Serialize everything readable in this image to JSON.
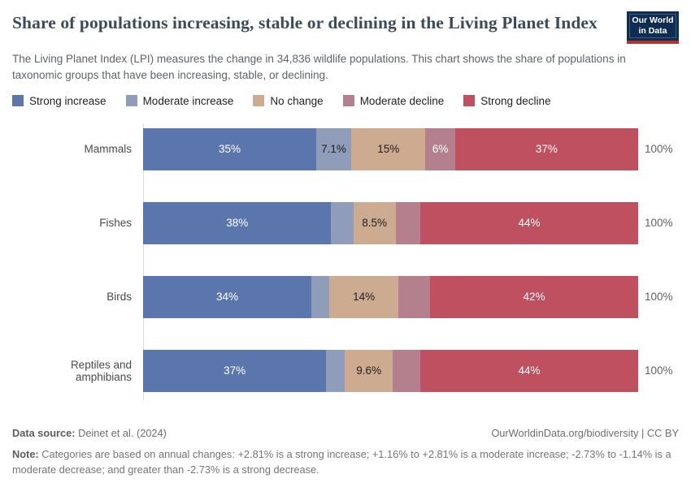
{
  "header": {
    "title": "Share of populations increasing, stable or declining in the Living Planet Index",
    "subtitle": "The Living Planet Index (LPI) measures the change in 34,836 wildlife populations. This chart shows the share of populations in taxonomic groups that have been increasing, stable, or declining.",
    "logo": {
      "line1": "Our World",
      "line2": "in Data",
      "bg_color": "#0f2d52",
      "stripe_color": "#b3342e"
    }
  },
  "legend": [
    {
      "label": "Strong increase",
      "color": "#5a76ac"
    },
    {
      "label": "Moderate increase",
      "color": "#8f9cba"
    },
    {
      "label": "No change",
      "color": "#cdab90"
    },
    {
      "label": "Moderate decline",
      "color": "#b4808e"
    },
    {
      "label": "Strong decline",
      "color": "#bf505f"
    }
  ],
  "chart_data": {
    "type": "bar",
    "orientation": "horizontal",
    "stacked": true,
    "unit": "%",
    "x_max": 100,
    "total_label": "100%",
    "series_names": [
      "Strong increase",
      "Moderate increase",
      "No change",
      "Moderate decline",
      "Strong decline"
    ],
    "palette": {
      "colors": [
        "#5a76ac",
        "#8f9cba",
        "#cdab90",
        "#b4808e",
        "#bf505f"
      ],
      "label_colors": [
        "#ffffff",
        "#212121",
        "#212121",
        "#ffffff",
        "#ffffff"
      ]
    },
    "categories": [
      "Mammals",
      "Fishes",
      "Birds",
      "Reptiles and amphibians"
    ],
    "rows": [
      {
        "category": "Mammals",
        "values": [
          35,
          7.1,
          15,
          6,
          37
        ],
        "labels": [
          "35%",
          "7.1%",
          "15%",
          "6%",
          "37%"
        ]
      },
      {
        "category": "Fishes",
        "values": [
          38,
          4.5,
          8.5,
          5,
          44
        ],
        "labels": [
          "38%",
          "",
          "8.5%",
          "",
          "44%"
        ]
      },
      {
        "category": "Birds",
        "values": [
          34,
          3.6,
          14,
          6.4,
          42
        ],
        "labels": [
          "34%",
          "",
          "14%",
          "",
          "42%"
        ]
      },
      {
        "category": "Reptiles and amphibians",
        "values": [
          37,
          3.8,
          9.6,
          5.6,
          44
        ],
        "labels": [
          "37%",
          "",
          "9.6%",
          "",
          "44%"
        ]
      }
    ]
  },
  "footer": {
    "datasource_label": "Data source:",
    "datasource": "Deinet et al. (2024)",
    "credit": "OurWorldinData.org/biodiversity | CC BY",
    "note_label": "Note:",
    "note": "Categories are based on annual changes: +2.81% is a strong increase; +1.16% to +2.81% is a moderate increase; -2.73% to -1.14% is a moderate decrease; and greater than -2.73% is a strong decrease."
  }
}
